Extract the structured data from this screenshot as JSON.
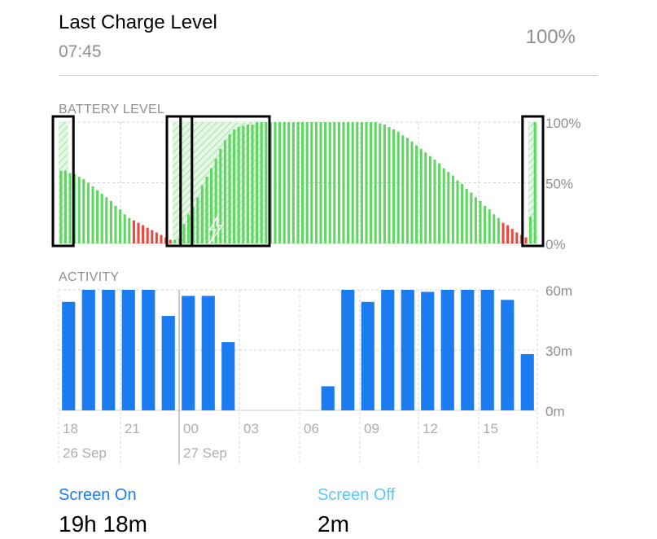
{
  "last_charge": {
    "title": "Last Charge Level",
    "time": "07:45",
    "value": "100%"
  },
  "battery_section": {
    "label": "BATTERY LEVEL"
  },
  "activity_section": {
    "label": "ACTIVITY"
  },
  "colors": {
    "battery_green": "#5ed760",
    "battery_red": "#f0463c",
    "activity_blue": "#1a7cf0",
    "screen_off_blue": "#5ac8fa",
    "grid": "#d1d1d6",
    "label_gray": "#8e8e93"
  },
  "chart_data": [
    {
      "type": "bar",
      "title": "BATTERY LEVEL",
      "y_ticks": [
        "100%",
        "50%",
        "0%"
      ],
      "ylim": [
        0,
        100
      ],
      "values": [
        60,
        60,
        58,
        57,
        55,
        53,
        50,
        47,
        44,
        41,
        38,
        35,
        31,
        28,
        24,
        21,
        19,
        17,
        15,
        13,
        11,
        9,
        7,
        5,
        3,
        3,
        4,
        16,
        24,
        30,
        38,
        48,
        55,
        62,
        70,
        78,
        85,
        90,
        94,
        96,
        97,
        98,
        98,
        100,
        100,
        100,
        100,
        100,
        100,
        100,
        100,
        100,
        100,
        100,
        100,
        100,
        100,
        100,
        100,
        100,
        100,
        100,
        100,
        100,
        100,
        100,
        100,
        100,
        100,
        100,
        99,
        98,
        96,
        94,
        92,
        89,
        87,
        84,
        81,
        78,
        75,
        72,
        69,
        66,
        62,
        59,
        56,
        52,
        49,
        45,
        42,
        38,
        35,
        31,
        28,
        24,
        21,
        17,
        15,
        12,
        9,
        7,
        5,
        22,
        100
      ],
      "low_threshold": 20,
      "charging_segments": [
        [
          0,
          1
        ],
        [
          25,
          27
        ],
        [
          28,
          44
        ],
        [
          103,
          104
        ]
      ],
      "grid": true
    },
    {
      "type": "bar",
      "title": "ACTIVITY",
      "y_ticks": [
        "60m",
        "30m",
        "0m"
      ],
      "ylim": [
        0,
        60
      ],
      "values": [
        54,
        60,
        60,
        60,
        60,
        47,
        57,
        57,
        34,
        0,
        0,
        0,
        0,
        12,
        60,
        54,
        60,
        60,
        59,
        60,
        60,
        60,
        55,
        28
      ],
      "x_tick_labels": [
        "18",
        "21",
        "00",
        "03",
        "06",
        "09",
        "12",
        "15"
      ],
      "date_labels": [
        "26 Sep",
        "27 Sep"
      ],
      "grid": true
    }
  ],
  "stats": {
    "screen_on_label": "Screen On",
    "screen_on_value": "19h 18m",
    "screen_off_label": "Screen Off",
    "screen_off_value": "2m"
  }
}
